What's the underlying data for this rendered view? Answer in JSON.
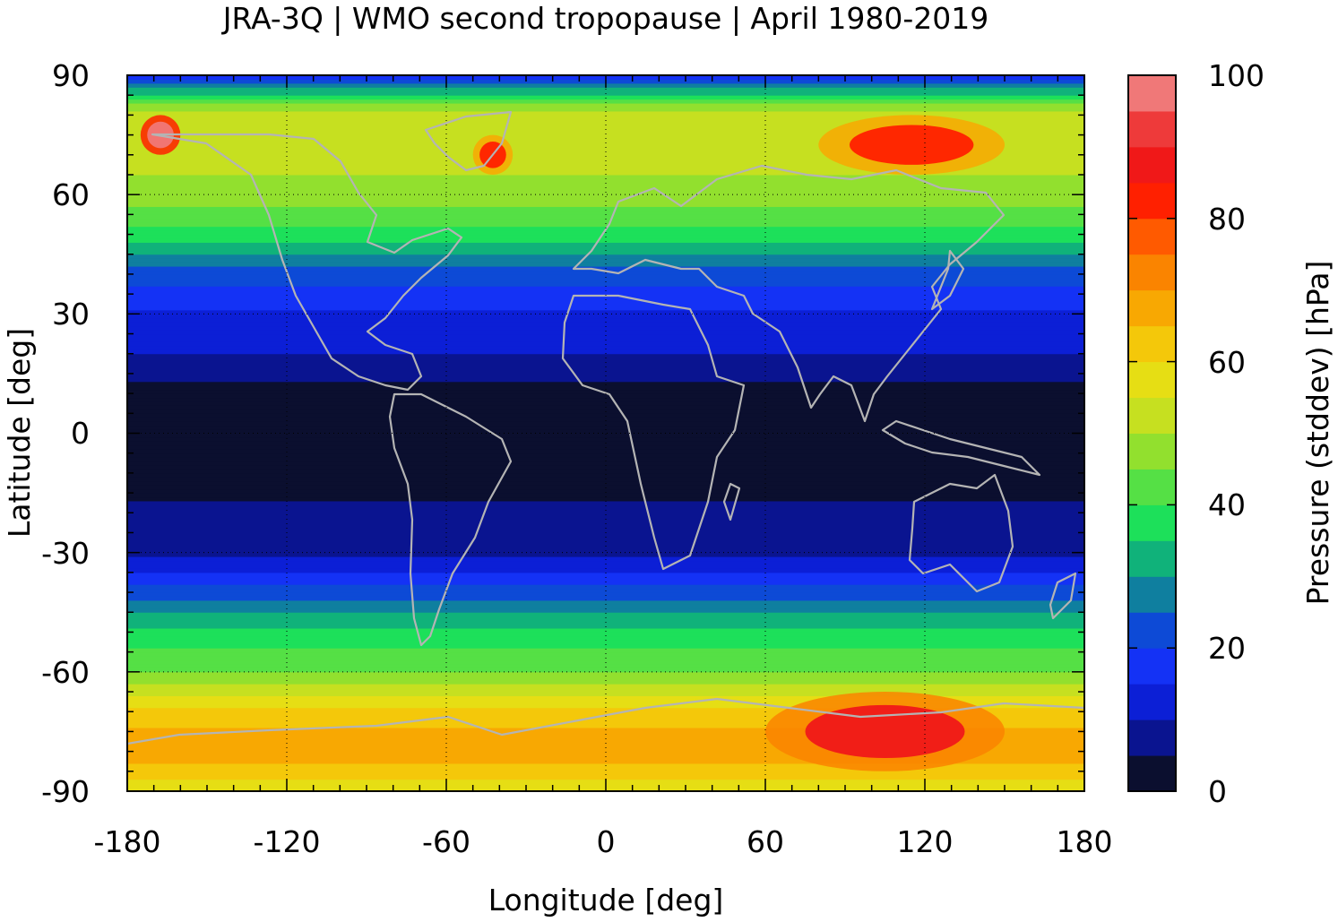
{
  "title": "JRA-3Q | WMO second tropopause | April 1980-2019",
  "xlabel": "Longitude [deg]",
  "ylabel": "Latitude [deg]",
  "colorbar_label": "Pressure (stddev) [hPa]",
  "x_ticks": [
    "-180",
    "-120",
    "-60",
    "0",
    "60",
    "120",
    "180"
  ],
  "y_ticks": [
    "90",
    "60",
    "30",
    "0",
    "-30",
    "-60",
    "-90"
  ],
  "colorbar_ticks": [
    "100",
    "80",
    "60",
    "40",
    "20",
    "0"
  ],
  "colors": {
    "coastline": "#b4b4b4",
    "colorbar_levels": [
      "#0b0f2f",
      "#0a1490",
      "#0c1fd6",
      "#1432f5",
      "#0d4ad6",
      "#0f7f9f",
      "#10b27a",
      "#1de05a",
      "#55e045",
      "#92e02e",
      "#c6e020",
      "#e6de14",
      "#f4c80a",
      "#f8a802",
      "#fa8400",
      "#ff5a00",
      "#ff2000",
      "#f01818",
      "#ee3a3a",
      "#f07878",
      "#ffc8c8"
    ]
  },
  "chart_data": {
    "type": "heatmap",
    "title": "JRA-3Q | WMO second tropopause | April 1980-2019",
    "xlabel": "Longitude [deg]",
    "ylabel": "Latitude [deg]",
    "xlim": [
      -180,
      180
    ],
    "ylim": [
      -90,
      90
    ],
    "x_ticks": [
      -180,
      -120,
      -60,
      0,
      60,
      120,
      180
    ],
    "y_ticks": [
      -90,
      -60,
      -30,
      0,
      30,
      60,
      90
    ],
    "grid": true,
    "colorbar": {
      "label": "Pressure (stddev) [hPa]",
      "range": [
        0,
        100
      ],
      "ticks": [
        0,
        20,
        40,
        60,
        80,
        100
      ],
      "step": 5,
      "placement": "right"
    },
    "zonal_profile": {
      "lat": [
        -90,
        -80,
        -70,
        -60,
        -50,
        -40,
        -30,
        -20,
        -10,
        0,
        10,
        20,
        30,
        40,
        50,
        60,
        70,
        80,
        90
      ],
      "value": [
        55,
        70,
        62,
        45,
        37,
        22,
        9,
        6,
        3,
        3,
        3,
        10,
        14,
        22,
        38,
        48,
        52,
        55,
        18
      ]
    },
    "regional_maxima": [
      {
        "lon_range": [
          60,
          150
        ],
        "lat_range": [
          -85,
          -65
        ],
        "value": 85
      },
      {
        "lon_range": [
          80,
          150
        ],
        "lat_range": [
          65,
          80
        ],
        "value": 80
      },
      {
        "lon_range": [
          -50,
          -35
        ],
        "lat_range": [
          65,
          75
        ],
        "value": 80
      },
      {
        "lon_range": [
          -175,
          -160
        ],
        "lat_range": [
          70,
          80
        ],
        "value": 95
      }
    ]
  }
}
